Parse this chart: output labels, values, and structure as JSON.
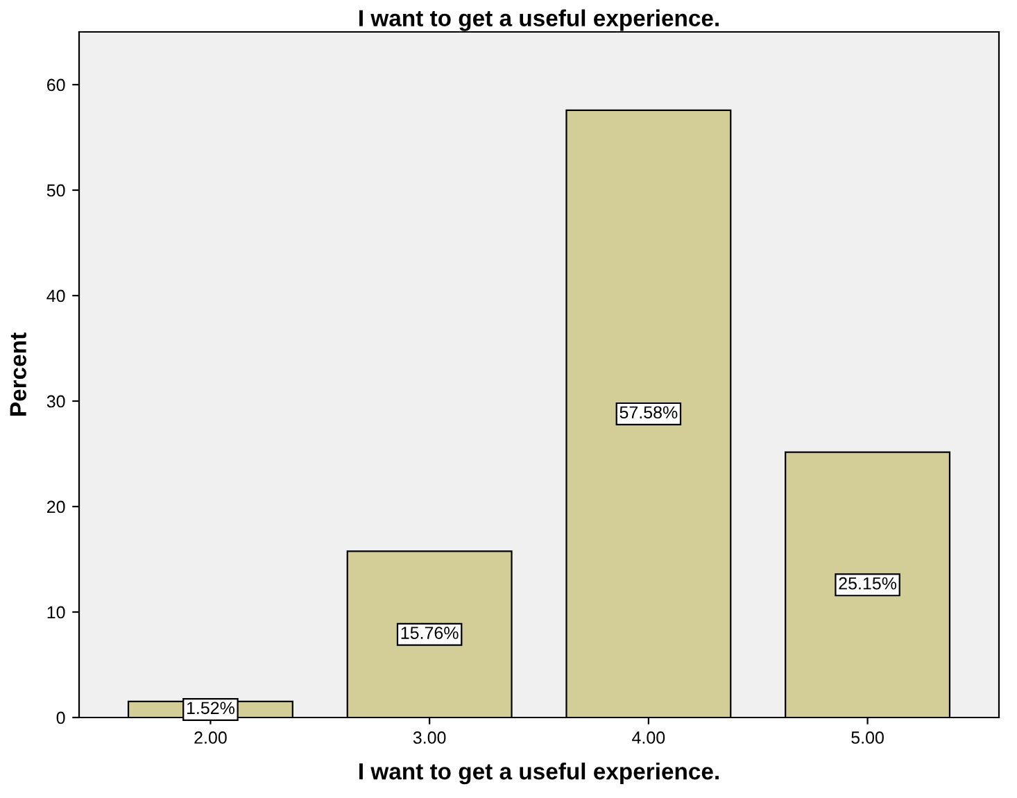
{
  "chart_data": {
    "type": "bar",
    "title": "I want to get a useful experience.",
    "xlabel": "I want to get a useful experience.",
    "ylabel": "Percent",
    "categories": [
      "2.00",
      "3.00",
      "4.00",
      "5.00"
    ],
    "values": [
      1.52,
      15.76,
      57.58,
      25.15
    ],
    "value_labels": [
      "1.52%",
      "15.76%",
      "57.58%",
      "25.15%"
    ],
    "color": "#d3ce97",
    "ylim": [
      0,
      65
    ],
    "yticks": [
      0,
      10,
      20,
      30,
      40,
      50,
      60
    ],
    "grid": false
  }
}
